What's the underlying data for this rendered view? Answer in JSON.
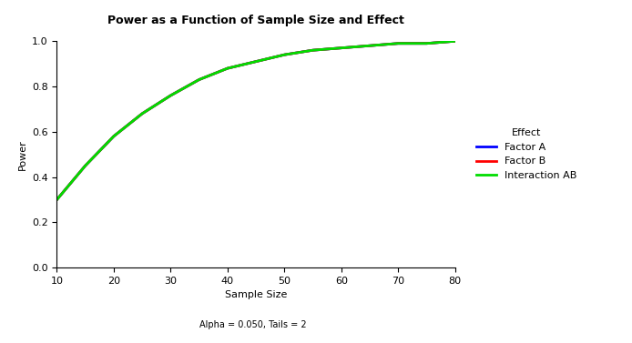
{
  "chart_data": {
    "type": "line",
    "title": "Power as a Function of Sample Size and Effect",
    "x_label": "Sample Size",
    "y_label": "Power",
    "legend_title": "Effect",
    "annotations": [
      "Alpha = 0.050, Tails = 2"
    ],
    "x": [
      10,
      15,
      20,
      25,
      30,
      35,
      40,
      45,
      50,
      55,
      60,
      65,
      70,
      75,
      80
    ],
    "series": [
      {
        "name": "Factor A",
        "color": "#0000ff",
        "values": [
          0.3,
          0.45,
          0.58,
          0.68,
          0.76,
          0.83,
          0.88,
          0.91,
          0.94,
          0.96,
          0.97,
          0.98,
          0.99,
          0.99,
          1.0
        ]
      },
      {
        "name": "Factor B",
        "color": "#ff0000",
        "values": [
          0.3,
          0.45,
          0.58,
          0.68,
          0.76,
          0.83,
          0.88,
          0.91,
          0.94,
          0.96,
          0.97,
          0.98,
          0.99,
          0.99,
          1.0
        ]
      },
      {
        "name": "Interaction AB",
        "color": "#00dd00",
        "values": [
          0.3,
          0.45,
          0.58,
          0.68,
          0.76,
          0.83,
          0.88,
          0.91,
          0.94,
          0.96,
          0.97,
          0.98,
          0.99,
          0.99,
          1.0
        ]
      }
    ],
    "xlim": [
      10,
      80
    ],
    "xticks": [
      10,
      20,
      30,
      40,
      50,
      60,
      70,
      80
    ],
    "ylim": [
      0,
      1
    ],
    "yticks": [
      {
        "value": 0,
        "label": "0.0"
      },
      {
        "value": 0.2,
        "label": "0.2"
      },
      {
        "value": 0.4,
        "label": "0.4"
      },
      {
        "value": 0.6,
        "label": "0.6"
      },
      {
        "value": 0.8,
        "label": "0.8"
      },
      {
        "value": 1,
        "label": "1.0"
      }
    ],
    "grid": false,
    "legend": "right"
  }
}
